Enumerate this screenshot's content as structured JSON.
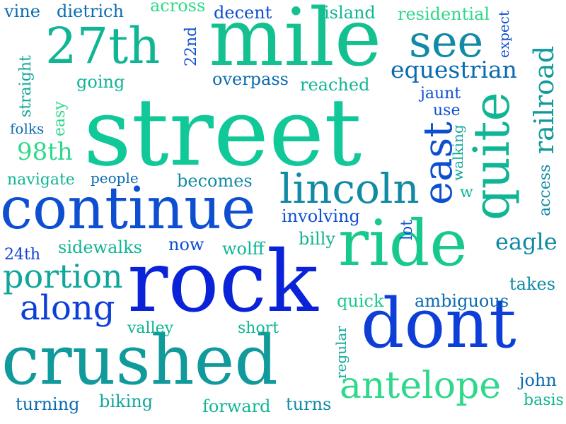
{
  "colors": {
    "background": "#ffffff",
    "palette": [
      "#0a23d8",
      "#0d4fd0",
      "#0b6bb0",
      "#108aa5",
      "#0fa39a",
      "#10b594",
      "#18c98e",
      "#2fd88a"
    ]
  },
  "words": [
    {
      "text": "street"
    },
    {
      "text": "rock"
    },
    {
      "text": "mile"
    },
    {
      "text": "continue"
    },
    {
      "text": "crushed"
    },
    {
      "text": "ride"
    },
    {
      "text": "dont"
    },
    {
      "text": "27th"
    },
    {
      "text": "quite"
    },
    {
      "text": "see"
    },
    {
      "text": "lincoln"
    },
    {
      "text": "antelope"
    },
    {
      "text": "east"
    },
    {
      "text": "railroad"
    },
    {
      "text": "along"
    },
    {
      "text": "portion"
    },
    {
      "text": "equestrian"
    },
    {
      "text": "eagle"
    },
    {
      "text": "98th"
    },
    {
      "text": "overpass"
    },
    {
      "text": "reached"
    },
    {
      "text": "residential"
    },
    {
      "text": "going"
    },
    {
      "text": "becomes"
    },
    {
      "text": "involving"
    },
    {
      "text": "sidewalks"
    },
    {
      "text": "wolff"
    },
    {
      "text": "billy"
    },
    {
      "text": "ambiguous"
    },
    {
      "text": "takes"
    },
    {
      "text": "navigate"
    },
    {
      "text": "people"
    },
    {
      "text": "folks"
    },
    {
      "text": "now"
    },
    {
      "text": "24th"
    },
    {
      "text": "quick"
    },
    {
      "text": "valley"
    },
    {
      "text": "short"
    },
    {
      "text": "turning"
    },
    {
      "text": "biking"
    },
    {
      "text": "forward"
    },
    {
      "text": "turns"
    },
    {
      "text": "john"
    },
    {
      "text": "basis"
    },
    {
      "text": "vine"
    },
    {
      "text": "dietrich"
    },
    {
      "text": "across"
    },
    {
      "text": "decent"
    },
    {
      "text": "island"
    },
    {
      "text": "jaunt"
    },
    {
      "text": "use"
    },
    {
      "text": "w"
    },
    {
      "text": "lot"
    },
    {
      "text": "22nd"
    },
    {
      "text": "straight"
    },
    {
      "text": "easy"
    },
    {
      "text": "expect"
    },
    {
      "text": "walking"
    },
    {
      "text": "access"
    },
    {
      "text": "regular"
    }
  ]
}
